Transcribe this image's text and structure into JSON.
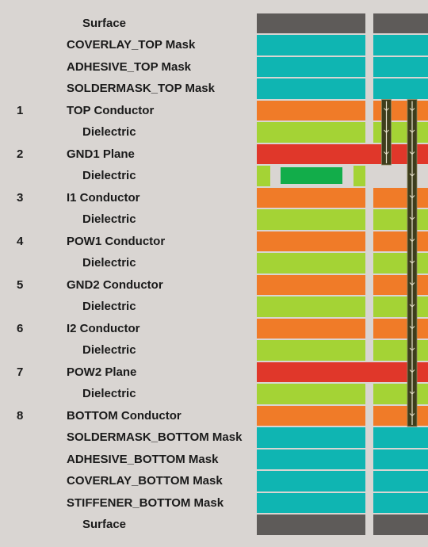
{
  "colors": {
    "background": "#d9d5d2",
    "surface": "#5e5b59",
    "mask": "#0fb5b2",
    "conductor": "#f07b28",
    "dielectric": "#a4d335",
    "plane": "#e0372a",
    "pad": "#12ad4a",
    "via_fill": "#3d3d1c",
    "via_mark": "#e8e2cc"
  },
  "layers": [
    {
      "num": "",
      "label": "Surface",
      "kind": "surface",
      "indent": true
    },
    {
      "num": "",
      "label": "COVERLAY_TOP Mask",
      "kind": "mask",
      "indent": false
    },
    {
      "num": "",
      "label": "ADHESIVE_TOP Mask",
      "kind": "mask",
      "indent": false
    },
    {
      "num": "",
      "label": "SOLDERMASK_TOP Mask",
      "kind": "mask",
      "indent": false
    },
    {
      "num": "1",
      "label": "TOP Conductor",
      "kind": "conductor",
      "indent": false
    },
    {
      "num": "",
      "label": "Dielectric",
      "kind": "dielectric",
      "indent": true
    },
    {
      "num": "2",
      "label": "GND1 Plane",
      "kind": "plane",
      "indent": false
    },
    {
      "num": "",
      "label": "Dielectric",
      "kind": "dielectric",
      "indent": true,
      "special": "pad"
    },
    {
      "num": "3",
      "label": "I1 Conductor",
      "kind": "conductor",
      "indent": false
    },
    {
      "num": "",
      "label": "Dielectric",
      "kind": "dielectric",
      "indent": true
    },
    {
      "num": "4",
      "label": "POW1 Conductor",
      "kind": "conductor",
      "indent": false
    },
    {
      "num": "",
      "label": "Dielectric",
      "kind": "dielectric",
      "indent": true
    },
    {
      "num": "5",
      "label": "GND2 Conductor",
      "kind": "conductor",
      "indent": false
    },
    {
      "num": "",
      "label": "Dielectric",
      "kind": "dielectric",
      "indent": true
    },
    {
      "num": "6",
      "label": "I2 Conductor",
      "kind": "conductor",
      "indent": false
    },
    {
      "num": "",
      "label": "Dielectric",
      "kind": "dielectric",
      "indent": true
    },
    {
      "num": "7",
      "label": "POW2 Plane",
      "kind": "plane",
      "indent": false
    },
    {
      "num": "",
      "label": "Dielectric",
      "kind": "dielectric",
      "indent": true
    },
    {
      "num": "8",
      "label": "BOTTOM Conductor",
      "kind": "conductor",
      "indent": false
    },
    {
      "num": "",
      "label": "SOLDERMASK_BOTTOM Mask",
      "kind": "mask",
      "indent": false
    },
    {
      "num": "",
      "label": "ADHESIVE_BOTTOM Mask",
      "kind": "mask",
      "indent": false
    },
    {
      "num": "",
      "label": "COVERLAY_BOTTOM Mask",
      "kind": "mask",
      "indent": false
    },
    {
      "num": "",
      "label": "STIFFENER_BOTTOM Mask",
      "kind": "mask",
      "indent": false
    },
    {
      "num": "",
      "label": "Surface",
      "kind": "surface",
      "indent": true
    }
  ],
  "vias": [
    {
      "name": "blind-via",
      "from_layer": 4,
      "to_layer": 6
    },
    {
      "name": "through-via",
      "from_layer": 4,
      "to_layer": 18
    }
  ]
}
